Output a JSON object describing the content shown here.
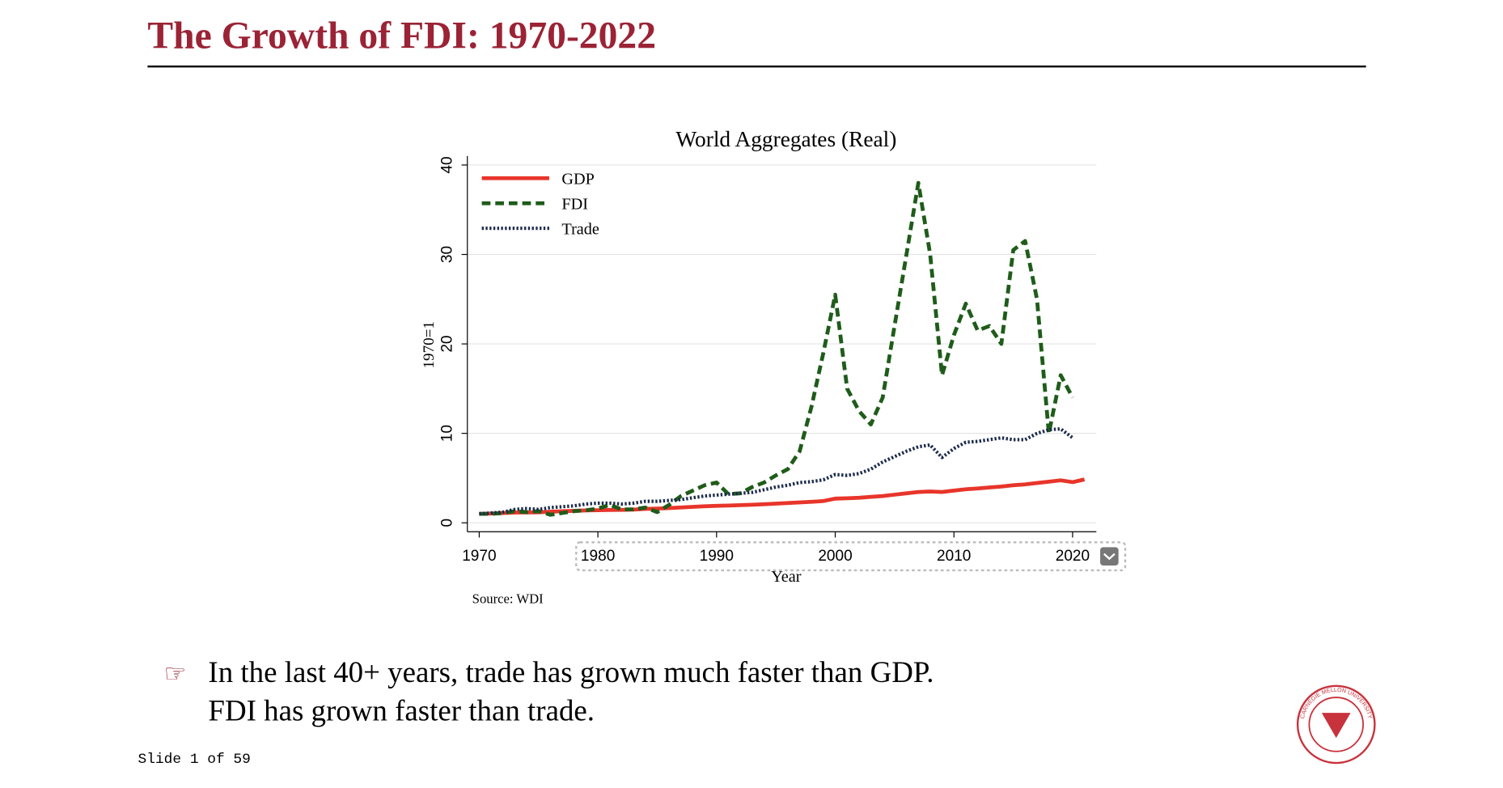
{
  "slide": {
    "title": "The Growth of FDI: 1970-2022",
    "bullet": "☞",
    "lines": [
      "In the last 40+ years, trade has grown much faster than GDP.",
      "FDI has grown faster than trade."
    ],
    "footer": "Slide 1 of 59",
    "logo": "CARNEGIE MELLON UNIVERSITY"
  },
  "chart_data": {
    "type": "line",
    "title": "World Aggregates (Real)",
    "x_label": "Year",
    "y_label": "1970=1",
    "note": "Source: WDI",
    "x": [
      1970,
      1971,
      1972,
      1973,
      1974,
      1975,
      1976,
      1977,
      1978,
      1979,
      1980,
      1981,
      1982,
      1983,
      1984,
      1985,
      1986,
      1987,
      1988,
      1989,
      1990,
      1991,
      1992,
      1993,
      1994,
      1995,
      1996,
      1997,
      1998,
      1999,
      2000,
      2001,
      2002,
      2003,
      2004,
      2005,
      2006,
      2007,
      2008,
      2009,
      2010,
      2011,
      2012,
      2013,
      2014,
      2015,
      2016,
      2017,
      2018,
      2019,
      2020,
      2021
    ],
    "series": [
      {
        "name": "GDP",
        "color": "#e8352a",
        "style": "solid",
        "values": [
          1,
          1.04,
          1.09,
          1.15,
          1.17,
          1.18,
          1.24,
          1.29,
          1.34,
          1.39,
          1.41,
          1.43,
          1.44,
          1.48,
          1.55,
          1.6,
          1.65,
          1.71,
          1.78,
          1.85,
          1.9,
          1.93,
          1.97,
          2.02,
          2.08,
          2.14,
          2.21,
          2.29,
          2.35,
          2.43,
          2.7,
          2.75,
          2.8,
          2.9,
          3.0,
          3.15,
          3.3,
          3.45,
          3.5,
          3.45,
          3.6,
          3.75,
          3.85,
          3.95,
          4.05,
          4.2,
          4.3,
          4.45,
          4.6,
          4.75,
          4.55,
          4.85
        ]
      },
      {
        "name": "FDI",
        "color": "#1f5c1a",
        "style": "dashed",
        "values": [
          1,
          1,
          1.1,
          1.3,
          1.2,
          1.3,
          0.9,
          1.1,
          1.3,
          1.4,
          1.6,
          2.0,
          1.5,
          1.5,
          1.7,
          1.2,
          2.0,
          3.0,
          3.6,
          4.2,
          4.5,
          3.2,
          3.3,
          4.0,
          4.5,
          5.3,
          6.0,
          8.0,
          13,
          19,
          25.5,
          15,
          12.5,
          11,
          14,
          22,
          30,
          38,
          30,
          16.5,
          21,
          24.5,
          21.5,
          22,
          20,
          30.5,
          31.5,
          25,
          10,
          16.5,
          14,
          null
        ]
      },
      {
        "name": "Trade",
        "color": "#1c2b4a",
        "style": "dotted",
        "values": [
          1,
          1.1,
          1.2,
          1.5,
          1.6,
          1.5,
          1.7,
          1.8,
          1.9,
          2.1,
          2.2,
          2.2,
          2.1,
          2.2,
          2.4,
          2.4,
          2.5,
          2.6,
          2.8,
          3.0,
          3.1,
          3.2,
          3.3,
          3.4,
          3.7,
          4.0,
          4.2,
          4.5,
          4.6,
          4.8,
          5.4,
          5.3,
          5.5,
          6.0,
          6.8,
          7.4,
          8.0,
          8.5,
          8.7,
          7.3,
          8.3,
          9.0,
          9.1,
          9.3,
          9.5,
          9.3,
          9.3,
          10.0,
          10.4,
          10.5,
          9.5,
          null
        ]
      }
    ],
    "xlim": [
      1969,
      2022
    ],
    "xticks": [
      1970,
      1980,
      1990,
      2000,
      2010,
      2020
    ],
    "ylim": [
      -1,
      41
    ],
    "yticks": [
      0,
      10,
      20,
      30,
      40
    ],
    "grid": true,
    "legend": "top-left"
  }
}
